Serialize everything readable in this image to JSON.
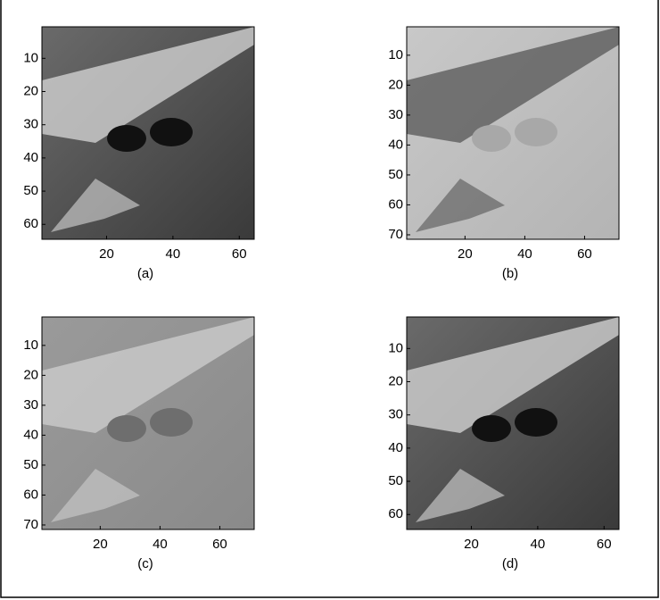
{
  "figure": {
    "panels": [
      {
        "caption": "(a)",
        "xlim": [
          0.5,
          64.5
        ],
        "ylim": [
          0.5,
          64.5
        ],
        "xticks": [
          20,
          40,
          60
        ],
        "yticks": [
          10,
          20,
          30,
          40,
          50,
          60
        ]
      },
      {
        "caption": "(b)",
        "xlim": [
          0.5,
          71.5
        ],
        "ylim": [
          0.5,
          71.5
        ],
        "xticks": [
          20,
          40,
          60
        ],
        "yticks": [
          10,
          20,
          30,
          40,
          50,
          60,
          70
        ]
      },
      {
        "caption": "(c)",
        "xlim": [
          0.5,
          71.5
        ],
        "ylim": [
          0.5,
          71.5
        ],
        "xticks": [
          20,
          40,
          60
        ],
        "yticks": [
          10,
          20,
          30,
          40,
          50,
          60,
          70
        ]
      },
      {
        "caption": "(d)",
        "xlim": [
          0.5,
          64.5
        ],
        "ylim": [
          0.5,
          64.5
        ],
        "xticks": [
          20,
          40,
          60
        ],
        "yticks": [
          10,
          20,
          30,
          40,
          50,
          60
        ]
      }
    ]
  }
}
